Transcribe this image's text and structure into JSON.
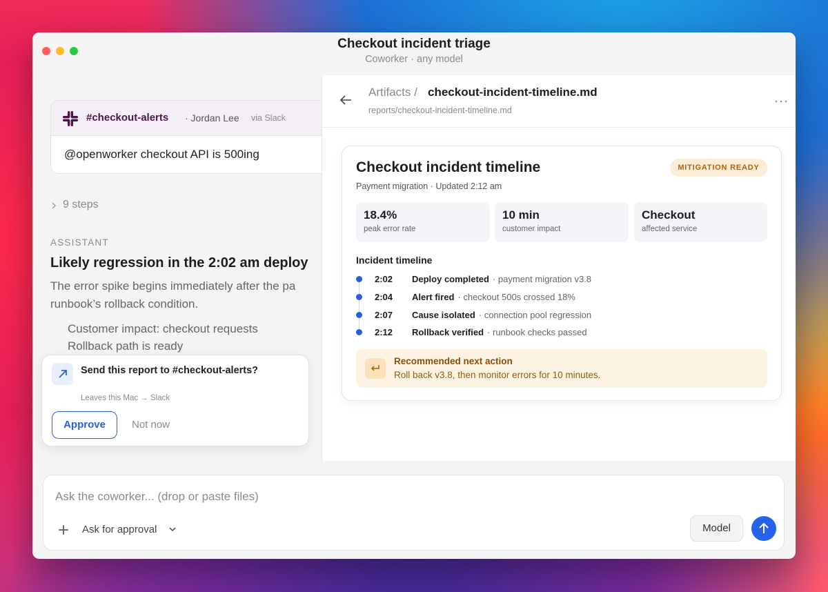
{
  "window": {
    "title": "Checkout incident triage",
    "subtitle": "Coworker · any model"
  },
  "message": {
    "channel": "#checkout-alerts",
    "author": "· Jordan Lee",
    "via": "via Slack",
    "text": "@openworker checkout API is 500ing"
  },
  "steps": "9 steps",
  "assistant": {
    "role": "ASSISTANT",
    "heading": "Likely regression in the 2:02 am deploy",
    "body_lines": [
      "The error spike begins immediately after the pa",
      "runbook’s rollback condition."
    ],
    "bullets": [
      "Customer impact: checkout requests",
      "Rollback path is ready"
    ]
  },
  "approval": {
    "title": "Send this report to #checkout-alerts?",
    "note": "Leaves this Mac → Slack",
    "approve": "Approve",
    "dismiss": "Not now"
  },
  "artifact": {
    "breadcrumb": "Artifacts /",
    "file": "checkout-incident-timeline.md",
    "path": "reports/checkout-incident-timeline.md"
  },
  "card": {
    "title": "Checkout incident timeline",
    "badge": "MITIGATION READY",
    "meta": "Payment migration · Updated 2:12 am",
    "stats": [
      {
        "value": "18.4%",
        "label": "peak error rate"
      },
      {
        "value": "10 min",
        "label": "customer impact"
      },
      {
        "value": "Checkout",
        "label": "affected service"
      }
    ],
    "timeline_title": "Incident timeline",
    "events": [
      {
        "time": "2:02",
        "title": "Deploy completed",
        "detail": "· payment migration v3.8"
      },
      {
        "time": "2:04",
        "title": "Alert fired",
        "detail": "· checkout 500s crossed 18%"
      },
      {
        "time": "2:07",
        "title": "Cause isolated",
        "detail": "· connection pool regression"
      },
      {
        "time": "2:12",
        "title": "Rollback verified",
        "detail": "· runbook checks passed"
      }
    ],
    "recommendation": {
      "title": "Recommended next action",
      "text": "Roll back v3.8, then monitor errors for 10 minutes."
    }
  },
  "composer": {
    "placeholder": "Ask the coworker... (drop or paste files)",
    "mode": "Ask for approval",
    "model": "Model"
  }
}
